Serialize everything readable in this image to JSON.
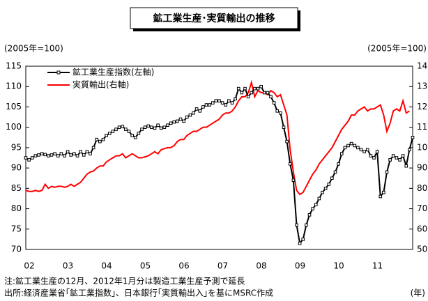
{
  "chart_data": {
    "type": "line",
    "title": "鉱工業生産･実質輸出の推移",
    "ylabel": "(2005年=100)",
    "y2label": "(2005年=100)",
    "xlabel": "(年)",
    "notes": [
      "注:鉱工業生産の12月、2012年1月分は製造工業生産予測で延長",
      "出所:経済産業省｢鉱工業指数｣、日本銀行｢実質輸出入｣を基にMSRC作成"
    ],
    "categories": [
      "02",
      null,
      null,
      null,
      null,
      null,
      null,
      null,
      null,
      null,
      null,
      null,
      "03",
      null,
      null,
      null,
      null,
      null,
      null,
      null,
      null,
      null,
      null,
      null,
      "04",
      null,
      null,
      null,
      null,
      null,
      null,
      null,
      null,
      null,
      null,
      null,
      "05",
      null,
      null,
      null,
      null,
      null,
      null,
      null,
      null,
      null,
      null,
      null,
      "06",
      null,
      null,
      null,
      null,
      null,
      null,
      null,
      null,
      null,
      null,
      null,
      "07",
      null,
      null,
      null,
      null,
      null,
      null,
      null,
      null,
      null,
      null,
      null,
      "08",
      null,
      null,
      null,
      null,
      null,
      null,
      null,
      null,
      null,
      null,
      null,
      "09",
      null,
      null,
      null,
      null,
      null,
      null,
      null,
      null,
      null,
      null,
      null,
      "10",
      null,
      null,
      null,
      null,
      null,
      null,
      null,
      null,
      null,
      null,
      null,
      "11",
      null,
      null,
      null,
      null,
      null,
      null,
      null,
      null,
      null,
      null,
      null,
      null
    ],
    "series": [
      {
        "name": "鉱工業生産指数(左軸)",
        "color": "#000000",
        "marker": true,
        "values": [
          92.5,
          92,
          92.5,
          93,
          93.2,
          93.5,
          93.3,
          93,
          93.2,
          93.5,
          93,
          93.5,
          93,
          94,
          93.2,
          93.5,
          93,
          94,
          93.2,
          94,
          93.5,
          95,
          97,
          96.5,
          97,
          98,
          98.5,
          99,
          99.5,
          100,
          100.2,
          99.5,
          99,
          98,
          97.5,
          98.5,
          99.5,
          100,
          100.3,
          100,
          99.8,
          100.5,
          99.8,
          100,
          100.5,
          101,
          101.3,
          101.5,
          102,
          101.5,
          102.5,
          103,
          103.5,
          104.5,
          104,
          105,
          105.5,
          105.5,
          106,
          106.5,
          106.5,
          106,
          105.5,
          106.5,
          106,
          107,
          109.5,
          108.5,
          109.5,
          107.5,
          108.5,
          109.5,
          109.5,
          110,
          108.5,
          108.5,
          107.5,
          106,
          104,
          103.5,
          100,
          96.5,
          91,
          87,
          76,
          71.5,
          72.5,
          76,
          78.5,
          80,
          81,
          82.5,
          84,
          85,
          86,
          87.5,
          89,
          91,
          93.5,
          95,
          95.5,
          96,
          95.5,
          95,
          94.5,
          94,
          94.5,
          93,
          92.5,
          94,
          83,
          84,
          89,
          92,
          93,
          92.5,
          92,
          93,
          90.5,
          94.5,
          97.5
        ]
      },
      {
        "name": "実質輸出(右軸)",
        "color": "#ff0000",
        "axis": "y2",
        "values": [
          79,
          78.5,
          78.5,
          79,
          78.5,
          79,
          82,
          80,
          81,
          80.5,
          81,
          81,
          80.5,
          81,
          82,
          81,
          82,
          83,
          85,
          87,
          88,
          88.5,
          90,
          91,
          91,
          93,
          94,
          95,
          96,
          96,
          97,
          95,
          96,
          97,
          96,
          95,
          95,
          95.5,
          96,
          97,
          98,
          97,
          99,
          99.5,
          100,
          100,
          101,
          103,
          104,
          104,
          106,
          107,
          108,
          108,
          109,
          110,
          110,
          111,
          112,
          113,
          114,
          116,
          117,
          117,
          118,
          120,
          123,
          125,
          125,
          127,
          132,
          125,
          128,
          127,
          127,
          126,
          128,
          127,
          125,
          126,
          121,
          116,
          99,
          88,
          79,
          77,
          78,
          81,
          84,
          87,
          89,
          92,
          94,
          96,
          98,
          100,
          103,
          106,
          109,
          111,
          113,
          116,
          116,
          118,
          119,
          120,
          118,
          119,
          119,
          120,
          121,
          116,
          108,
          112,
          118,
          119,
          118,
          123,
          117,
          118,
          null
        ]
      }
    ],
    "ylim": [
      70,
      115
    ],
    "yticks": [
      70,
      75,
      80,
      85,
      90,
      95,
      100,
      105,
      110,
      115
    ],
    "y2lim": [
      50,
      140
    ],
    "y2ticks": [
      50,
      60,
      70,
      80,
      90,
      100,
      110,
      120,
      130,
      140
    ],
    "legend": "top-left",
    "grid": false
  }
}
